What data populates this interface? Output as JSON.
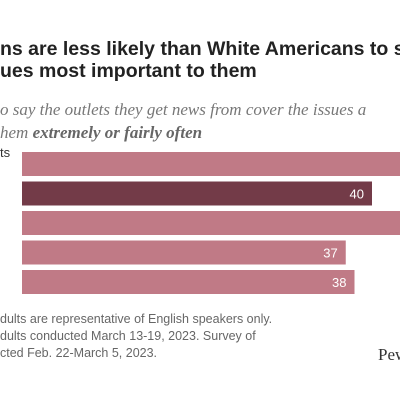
{
  "header": {
    "title_lines": [
      "ns are less likely than White Americans to s",
      "ues most important to them"
    ],
    "subtitle_lines": [
      "o say the outlets they get news from cover the issues a",
      "hem "
    ],
    "subtitle_emphasis": "extremely or fairly often"
  },
  "chart_data": {
    "type": "bar",
    "orientation": "horizontal",
    "categories": [
      "ts",
      "",
      "",
      "",
      ""
    ],
    "values": [
      null,
      40,
      null,
      37,
      38
    ],
    "value_labels": [
      "",
      "40",
      "",
      "37",
      "38"
    ],
    "highlight_index": 1,
    "colors": {
      "bar": "#c07a86",
      "highlight": "#733b48",
      "label": "#ffffff"
    },
    "xlim": [
      0,
      45
    ],
    "title": "",
    "xlabel": "",
    "ylabel": ""
  },
  "footer": {
    "note_lines": [
      "dults are representative of English speakers only.",
      "dults conducted March 13-19, 2023. Survey of",
      "cted Feb. 22-March 5, 2023."
    ],
    "brand": "Pew"
  }
}
